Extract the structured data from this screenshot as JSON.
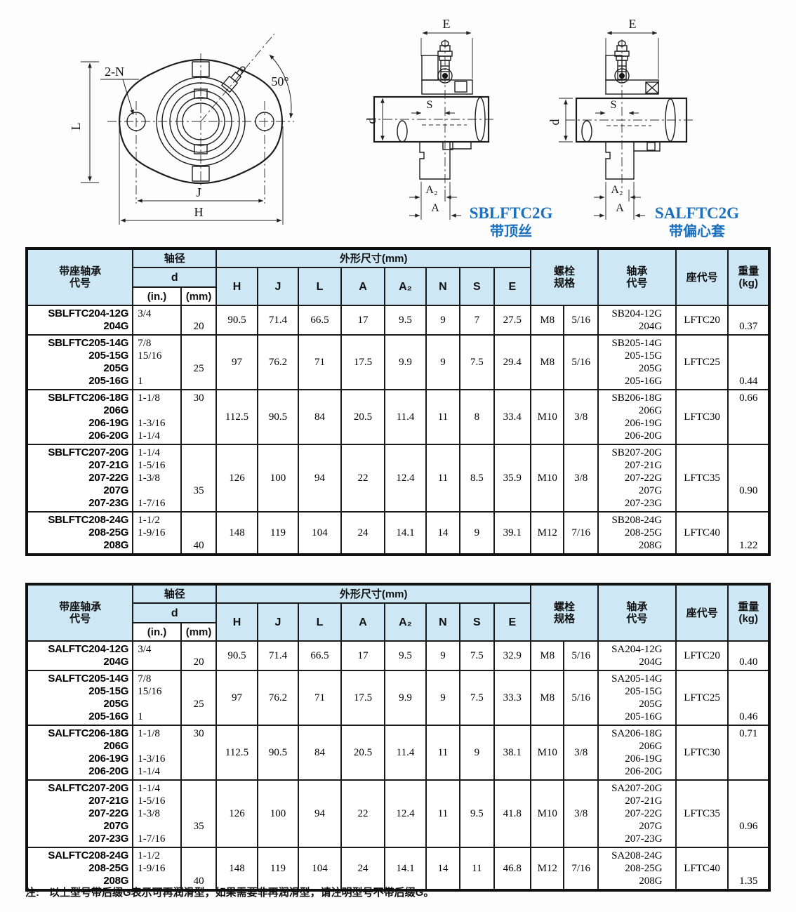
{
  "colors": {
    "header_bg": "#cde7f5",
    "caption_blue": "#1b70c0",
    "table_line": "#1a1a1a"
  },
  "drawings": {
    "front_view": {
      "labels": {
        "bolt_holes": "2-N",
        "angle": "50°",
        "dim_l": "L",
        "dim_j": "J",
        "dim_h": "H"
      }
    },
    "sblftc_section": {
      "caption_title": "SBLFTC2G",
      "caption_sub": "带顶丝",
      "labels": {
        "dim_e": "E",
        "dim_d": "d",
        "dim_s": "S",
        "dim_a2": "A₂",
        "dim_a": "A"
      }
    },
    "salftc_section": {
      "caption_title": "SALFTC2G",
      "caption_sub": "带偏心套",
      "labels": {
        "dim_e": "E",
        "dim_d": "d",
        "dim_s": "S",
        "dim_a2": "A₂",
        "dim_a": "A"
      }
    }
  },
  "table_header": {
    "unit_code": "带座轴承\n代号",
    "shaft_dia": "轴径",
    "d": "d",
    "in": "(in.)",
    "mm": "(mm)",
    "dims_group": "外形尺寸(mm)",
    "dims": [
      "H",
      "J",
      "L",
      "A",
      "A₂",
      "N",
      "S",
      "E"
    ],
    "bolt": "螺栓\n规格",
    "bearing_code": "轴承\n代号",
    "housing_code": "座代号",
    "weight": "重量\n(kg)"
  },
  "tables": [
    {
      "id": "sblftc",
      "rows": [
        {
          "codes": [
            "SBLFTC204-12G",
            "204G"
          ],
          "in": [
            "3/4",
            ""
          ],
          "mm": [
            "",
            "20"
          ],
          "dims": [
            "90.5",
            "71.4",
            "66.5",
            "17",
            "9.5",
            "9",
            "7",
            "27.5"
          ],
          "bolt_m": "M8",
          "bolt_in": "5/16",
          "bearing": [
            "SB204-12G",
            "204G"
          ],
          "housing": "LFTC20",
          "weight": [
            "",
            "0.37"
          ]
        },
        {
          "codes": [
            "SBLFTC205-14G",
            "205-15G",
            "205G",
            "205-16G"
          ],
          "in": [
            "7/8",
            "15/16",
            "",
            "1"
          ],
          "mm": [
            "",
            "",
            "25",
            ""
          ],
          "dims": [
            "97",
            "76.2",
            "71",
            "17.5",
            "9.9",
            "9",
            "7.5",
            "29.4"
          ],
          "bolt_m": "M8",
          "bolt_in": "5/16",
          "bearing": [
            "SB205-14G",
            "205-15G",
            "205G",
            "205-16G"
          ],
          "housing": "LFTC25",
          "weight": [
            "",
            "",
            "",
            "0.44"
          ]
        },
        {
          "codes": [
            "SBLFTC206-18G",
            "206G",
            "206-19G",
            "206-20G"
          ],
          "in": [
            "1-1/8",
            "",
            "1-3/16",
            "1-1/4"
          ],
          "mm": [
            "30",
            "",
            "",
            ""
          ],
          "dims": [
            "112.5",
            "90.5",
            "84",
            "20.5",
            "11.4",
            "11",
            "8",
            "33.4"
          ],
          "bolt_m": "M10",
          "bolt_in": "3/8",
          "bearing": [
            "SB206-18G",
            "206G",
            "206-19G",
            "206-20G"
          ],
          "housing": "LFTC30",
          "weight": [
            "0.66",
            "",
            "",
            ""
          ]
        },
        {
          "codes": [
            "SBLFTC207-20G",
            "207-21G",
            "207-22G",
            "207G",
            "207-23G"
          ],
          "in": [
            "1-1/4",
            "1-5/16",
            "1-3/8",
            "",
            "1-7/16"
          ],
          "mm": [
            "",
            "",
            "",
            "35",
            ""
          ],
          "dims": [
            "126",
            "100",
            "94",
            "22",
            "12.4",
            "11",
            "8.5",
            "35.9"
          ],
          "bolt_m": "M10",
          "bolt_in": "3/8",
          "bearing": [
            "SB207-20G",
            "207-21G",
            "207-22G",
            "207G",
            "207-23G"
          ],
          "housing": "LFTC35",
          "weight": [
            "",
            "",
            "",
            "0.90",
            ""
          ]
        },
        {
          "codes": [
            "SBLFTC208-24G",
            "208-25G",
            "208G"
          ],
          "in": [
            "1-1/2",
            "1-9/16",
            ""
          ],
          "mm": [
            "",
            "",
            "40"
          ],
          "dims": [
            "148",
            "119",
            "104",
            "24",
            "14.1",
            "14",
            "9",
            "39.1"
          ],
          "bolt_m": "M12",
          "bolt_in": "7/16",
          "bearing": [
            "SB208-24G",
            "208-25G",
            "208G"
          ],
          "housing": "LFTC40",
          "weight": [
            "",
            "",
            "1.22"
          ]
        }
      ]
    },
    {
      "id": "salftc",
      "rows": [
        {
          "codes": [
            "SALFTC204-12G",
            "204G"
          ],
          "in": [
            "3/4",
            ""
          ],
          "mm": [
            "",
            "20"
          ],
          "dims": [
            "90.5",
            "71.4",
            "66.5",
            "17",
            "9.5",
            "9",
            "7.5",
            "32.9"
          ],
          "bolt_m": "M8",
          "bolt_in": "5/16",
          "bearing": [
            "SA204-12G",
            "204G"
          ],
          "housing": "LFTC20",
          "weight": [
            "",
            "0.40"
          ]
        },
        {
          "codes": [
            "SALFTC205-14G",
            "205-15G",
            "205G",
            "205-16G"
          ],
          "in": [
            "7/8",
            "15/16",
            "",
            "1"
          ],
          "mm": [
            "",
            "",
            "25",
            ""
          ],
          "dims": [
            "97",
            "76.2",
            "71",
            "17.5",
            "9.9",
            "9",
            "7.5",
            "33.3"
          ],
          "bolt_m": "M8",
          "bolt_in": "5/16",
          "bearing": [
            "SA205-14G",
            "205-15G",
            "205G",
            "205-16G"
          ],
          "housing": "LFTC25",
          "weight": [
            "",
            "",
            "",
            "0.46"
          ]
        },
        {
          "codes": [
            "SALFTC206-18G",
            "206G",
            "206-19G",
            "206-20G"
          ],
          "in": [
            "1-1/8",
            "",
            "1-3/16",
            "1-1/4"
          ],
          "mm": [
            "30",
            "",
            "",
            ""
          ],
          "dims": [
            "112.5",
            "90.5",
            "84",
            "20.5",
            "11.4",
            "11",
            "9",
            "38.1"
          ],
          "bolt_m": "M10",
          "bolt_in": "3/8",
          "bearing": [
            "SA206-18G",
            "206G",
            "206-19G",
            "206-20G"
          ],
          "housing": "LFTC30",
          "weight": [
            "0.71",
            "",
            "",
            ""
          ]
        },
        {
          "codes": [
            "SALFTC207-20G",
            "207-21G",
            "207-22G",
            "207G",
            "207-23G"
          ],
          "in": [
            "1-1/4",
            "1-5/16",
            "1-3/8",
            "",
            "1-7/16"
          ],
          "mm": [
            "",
            "",
            "",
            "35",
            ""
          ],
          "dims": [
            "126",
            "100",
            "94",
            "22",
            "12.4",
            "11",
            "9.5",
            "41.8"
          ],
          "bolt_m": "M10",
          "bolt_in": "3/8",
          "bearing": [
            "SA207-20G",
            "207-21G",
            "207-22G",
            "207G",
            "207-23G"
          ],
          "housing": "LFTC35",
          "weight": [
            "",
            "",
            "",
            "0.96",
            ""
          ]
        },
        {
          "codes": [
            "SALFTC208-24G",
            "208-25G",
            "208G"
          ],
          "in": [
            "1-1/2",
            "1-9/16",
            ""
          ],
          "mm": [
            "",
            "",
            "40"
          ],
          "dims": [
            "148",
            "119",
            "104",
            "24",
            "14.1",
            "14",
            "11",
            "46.8"
          ],
          "bolt_m": "M12",
          "bolt_in": "7/16",
          "bearing": [
            "SA208-24G",
            "208-25G",
            "208G"
          ],
          "housing": "LFTC40",
          "weight": [
            "",
            "",
            "1.35"
          ]
        }
      ]
    }
  ],
  "note": {
    "label": "注:",
    "text": "以上型号带后缀G表示可再润滑型，如果需要非再润滑型，请注明型号不带后缀G。"
  }
}
